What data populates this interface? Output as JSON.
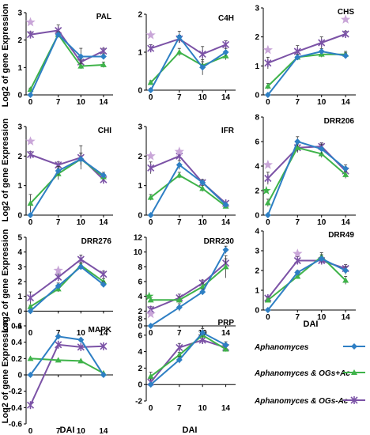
{
  "figure": {
    "ylabel": "Log2 of gene Expression",
    "xlabel": "DAI"
  },
  "legend": {
    "items": [
      {
        "label": "Aphanomyces",
        "color": "#2e7fc4",
        "marker": "diamond"
      },
      {
        "label": "Aphanomyces & OGs+Ac",
        "color": "#3fb34a",
        "marker": "triangle"
      },
      {
        "label": "Aphanomyces & OGs-Ac",
        "color": "#7b52a6",
        "marker": "asterisk"
      }
    ]
  },
  "chart_data": [
    {
      "type": "line",
      "title": "PAL",
      "categories": [
        "0",
        "7",
        "10",
        "14"
      ],
      "ylim": [
        0,
        3
      ],
      "yticks": [
        0,
        1,
        2,
        3
      ],
      "series": [
        {
          "name": "Aphanomyces",
          "values": [
            0.0,
            2.2,
            1.4,
            1.4
          ],
          "errors": [
            0.05,
            0.1,
            0.3,
            0.1
          ]
        },
        {
          "name": "Aphanomyces & OGs+Ac",
          "values": [
            0.2,
            2.2,
            1.05,
            1.1
          ],
          "errors": [
            0.05,
            0.1,
            0.1,
            0.1
          ]
        },
        {
          "name": "Aphanomyces & OGs-Ac",
          "values": [
            2.2,
            2.35,
            1.2,
            1.6
          ],
          "errors": [
            0.1,
            0.2,
            0.1,
            0.1
          ]
        }
      ],
      "stars": [
        {
          "x": "0",
          "y": 2.65
        }
      ]
    },
    {
      "type": "line",
      "title": "C4H",
      "categories": [
        "0",
        "7",
        "10",
        "14"
      ],
      "ylim": [
        0,
        2
      ],
      "yticks": [
        0,
        1,
        2
      ],
      "series": [
        {
          "name": "Aphanomyces",
          "values": [
            0.0,
            1.4,
            0.6,
            1.0
          ],
          "errors": [
            0.05,
            0.15,
            0.2,
            0.1
          ]
        },
        {
          "name": "Aphanomyces & OGs+Ac",
          "values": [
            0.2,
            1.0,
            0.65,
            0.9
          ],
          "errors": [
            0.05,
            0.1,
            0.1,
            0.1
          ]
        },
        {
          "name": "Aphanomyces & OGs-Ac",
          "values": [
            1.1,
            1.35,
            0.95,
            1.2
          ],
          "errors": [
            0.1,
            0.1,
            0.2,
            0.1
          ]
        }
      ],
      "stars": [
        {
          "x": "0",
          "y": 1.45
        }
      ]
    },
    {
      "type": "line",
      "title": "CHS",
      "categories": [
        "0",
        "7",
        "10",
        "14"
      ],
      "ylim": [
        0,
        3
      ],
      "yticks": [
        0,
        1,
        2,
        3
      ],
      "series": [
        {
          "name": "Aphanomyces",
          "values": [
            0.0,
            1.3,
            1.5,
            1.35
          ],
          "errors": [
            0.05,
            0.1,
            0.1,
            0.1
          ]
        },
        {
          "name": "Aphanomyces & OGs+Ac",
          "values": [
            0.3,
            1.3,
            1.4,
            1.4
          ],
          "errors": [
            0.1,
            0.1,
            0.1,
            0.1
          ]
        },
        {
          "name": "Aphanomyces & OGs-Ac",
          "values": [
            1.1,
            1.5,
            1.8,
            2.1
          ],
          "errors": [
            0.2,
            0.2,
            0.2,
            0.1
          ]
        }
      ],
      "stars": [
        {
          "x": "0",
          "y": 1.55
        },
        {
          "x": "14",
          "y": 2.6
        }
      ]
    },
    {
      "type": "line",
      "title": "CHI",
      "categories": [
        "0",
        "7",
        "10",
        "14"
      ],
      "ylim": [
        0,
        3
      ],
      "yticks": [
        0,
        1,
        2,
        3
      ],
      "series": [
        {
          "name": "Aphanomyces",
          "values": [
            0.0,
            1.5,
            1.9,
            1.35
          ],
          "errors": [
            0.05,
            0.15,
            0.2,
            0.1
          ]
        },
        {
          "name": "Aphanomyces & OGs+Ac",
          "values": [
            0.4,
            1.4,
            1.9,
            1.3
          ],
          "errors": [
            0.3,
            0.2,
            0.2,
            0.1
          ]
        },
        {
          "name": "Aphanomyces & OGs-Ac",
          "values": [
            2.05,
            1.7,
            1.95,
            1.2
          ],
          "errors": [
            0.1,
            0.1,
            0.4,
            0.1
          ]
        }
      ],
      "stars": [
        {
          "x": "0",
          "y": 2.5
        }
      ]
    },
    {
      "type": "line",
      "title": "IFR",
      "categories": [
        "0",
        "7",
        "10",
        "14"
      ],
      "ylim": [
        0,
        3
      ],
      "yticks": [
        0,
        1,
        2,
        3
      ],
      "series": [
        {
          "name": "Aphanomyces",
          "values": [
            0.0,
            1.7,
            1.1,
            0.35
          ],
          "errors": [
            0.05,
            0.15,
            0.1,
            0.05
          ]
        },
        {
          "name": "Aphanomyces & OGs+Ac",
          "values": [
            0.6,
            1.35,
            0.9,
            0.3
          ],
          "errors": [
            0.1,
            0.1,
            0.1,
            0.05
          ]
        },
        {
          "name": "Aphanomyces & OGs-Ac",
          "values": [
            1.6,
            2.0,
            1.1,
            0.4
          ],
          "errors": [
            0.2,
            0.1,
            0.1,
            0.05
          ]
        }
      ],
      "stars": [
        {
          "x": "0",
          "y": 2.0
        },
        {
          "x": "7",
          "y": 2.15
        }
      ]
    },
    {
      "type": "line",
      "title": "DRR206",
      "categories": [
        "0",
        "7",
        "10",
        "14"
      ],
      "ylim": [
        0,
        8
      ],
      "yticks": [
        0,
        2,
        4,
        6,
        8
      ],
      "series": [
        {
          "name": "Aphanomyces",
          "values": [
            0.0,
            6.0,
            5.4,
            3.8
          ],
          "errors": [
            0.05,
            0.4,
            0.4,
            0.3
          ]
        },
        {
          "name": "Aphanomyces & OGs+Ac",
          "values": [
            1.0,
            5.5,
            5.0,
            3.3
          ],
          "errors": [
            0.3,
            0.3,
            0.3,
            0.3
          ]
        },
        {
          "name": "Aphanomyces & OGs-Ac",
          "values": [
            3.0,
            5.5,
            5.6,
            3.6
          ],
          "errors": [
            0.5,
            0.4,
            0.3,
            0.3
          ]
        }
      ],
      "stars": [
        {
          "x": "0",
          "y": 4.1
        }
      ],
      "extra_markers": [
        {
          "series": "Aphanomyces & OGs+Ac",
          "x": "0",
          "y": 2.0
        }
      ]
    },
    {
      "type": "line",
      "title": "DRR276",
      "categories": [
        "0",
        "7",
        "10",
        "14"
      ],
      "ylim": [
        -1,
        5
      ],
      "yticks": [
        -1,
        0,
        1,
        2,
        3,
        4,
        5
      ],
      "series": [
        {
          "name": "Aphanomyces",
          "values": [
            0.0,
            1.7,
            3.0,
            1.8
          ],
          "errors": [
            0.05,
            0.2,
            0.2,
            0.2
          ]
        },
        {
          "name": "Aphanomyces & OGs+Ac",
          "values": [
            0.3,
            1.5,
            3.1,
            2.0
          ],
          "errors": [
            0.1,
            0.2,
            0.2,
            0.2
          ]
        },
        {
          "name": "Aphanomyces & OGs-Ac",
          "values": [
            0.9,
            2.3,
            3.5,
            2.5
          ],
          "errors": [
            0.4,
            0.2,
            0.3,
            0.2
          ]
        }
      ],
      "stars": [
        {
          "x": "7",
          "y": 2.75
        }
      ]
    },
    {
      "type": "line",
      "title": "DRR230",
      "categories": [
        "0",
        "7",
        "10",
        "14"
      ],
      "ylim": [
        0,
        12
      ],
      "yticks": [
        0,
        2,
        4,
        6,
        8,
        10,
        12
      ],
      "series": [
        {
          "name": "Aphanomyces",
          "values": [
            0.0,
            2.5,
            4.6,
            10.3
          ],
          "errors": [
            0.05,
            0.5,
            0.4,
            0.5
          ]
        },
        {
          "name": "Aphanomyces & OGs+Ac",
          "values": [
            3.5,
            3.5,
            5.3,
            8.0
          ],
          "errors": [
            0.3,
            0.4,
            0.5,
            1.5
          ]
        },
        {
          "name": "Aphanomyces & OGs-Ac",
          "values": [
            2.2,
            3.8,
            5.8,
            8.5
          ],
          "errors": [
            0.4,
            0.5,
            0.4,
            0.6
          ]
        }
      ],
      "stars": [
        {
          "x": "0",
          "y": 1.6
        }
      ],
      "extra_markers": [
        {
          "series": "Aphanomyces & OGs+Ac",
          "x": "0",
          "y": 4.0
        }
      ]
    },
    {
      "type": "line",
      "title": "DRR49",
      "categories": [
        "0",
        "7",
        "10",
        "14"
      ],
      "ylim": [
        0,
        4
      ],
      "yticks": [
        0,
        1,
        2,
        3,
        4
      ],
      "series": [
        {
          "name": "Aphanomyces",
          "values": [
            0.0,
            1.9,
            2.6,
            2.0
          ],
          "errors": [
            0.05,
            0.1,
            0.2,
            0.2
          ]
        },
        {
          "name": "Aphanomyces & OGs+Ac",
          "values": [
            0.5,
            1.7,
            2.7,
            1.5
          ],
          "errors": [
            0.1,
            0.1,
            0.2,
            0.2
          ]
        },
        {
          "name": "Aphanomyces & OGs-Ac",
          "values": [
            0.6,
            2.5,
            2.5,
            2.1
          ],
          "errors": [
            0.1,
            0.2,
            0.2,
            0.2
          ]
        }
      ],
      "stars": [
        {
          "x": "7",
          "y": 2.85
        }
      ]
    },
    {
      "type": "line",
      "title": "MAPK",
      "categories": [
        "0",
        "7",
        "10",
        "14"
      ],
      "ylim": [
        -0.6,
        0.6
      ],
      "yticks": [
        -0.6,
        -0.4,
        -0.2,
        0,
        0.2,
        0.4,
        0.6
      ],
      "series": [
        {
          "name": "Aphanomyces",
          "values": [
            0.0,
            0.47,
            0.43,
            0.0
          ],
          "errors": [
            0,
            0,
            0,
            0
          ]
        },
        {
          "name": "Aphanomyces & OGs+Ac",
          "values": [
            0.2,
            0.18,
            0.17,
            0.02
          ],
          "errors": [
            0,
            0,
            0,
            0
          ]
        },
        {
          "name": "Aphanomyces & OGs-Ac",
          "values": [
            -0.37,
            0.37,
            0.34,
            0.35
          ],
          "errors": [
            0,
            0,
            0,
            0
          ]
        }
      ],
      "stars": []
    },
    {
      "type": "line",
      "title": "PRP",
      "categories": [
        "0",
        "7",
        "10",
        "14"
      ],
      "ylim": [
        -2,
        8
      ],
      "yticks": [
        -2,
        0,
        2,
        4,
        6,
        8
      ],
      "series": [
        {
          "name": "Aphanomyces",
          "values": [
            0.0,
            3.0,
            6.3,
            4.8
          ],
          "errors": [
            0.05,
            0.4,
            0.5,
            0.4
          ]
        },
        {
          "name": "Aphanomyces & OGs+Ac",
          "values": [
            1.0,
            3.6,
            6.0,
            4.3
          ],
          "errors": [
            0.5,
            0.3,
            0.4,
            0.3
          ]
        },
        {
          "name": "Aphanomyces & OGs-Ac",
          "values": [
            0.3,
            4.5,
            5.4,
            4.5
          ],
          "errors": [
            0.4,
            0.5,
            0.4,
            0.3
          ]
        }
      ],
      "stars": []
    }
  ]
}
